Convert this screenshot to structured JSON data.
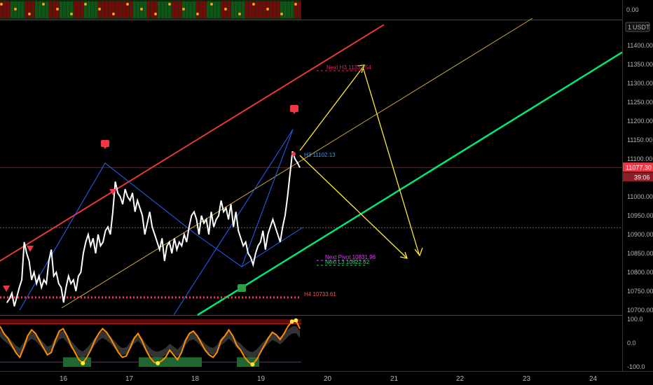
{
  "symbol_unit": "USDT",
  "chart_data": [
    {
      "type": "heatmap",
      "title": "",
      "y_tick_labels": [
        "0.00"
      ],
      "note": "top strip indicator, red/green bars with orange dots"
    },
    {
      "type": "line",
      "title": "",
      "x_ticks": [
        "16",
        "17",
        "18",
        "19",
        "20",
        "21",
        "22",
        "23",
        "24"
      ],
      "y_ticks": [
        "11400.00",
        "11350.00",
        "11300.00",
        "11250.00",
        "11200.00",
        "11150.00",
        "11100.00",
        "11000.00",
        "10950.00",
        "10900.00",
        "10850.00",
        "10800.00",
        "10750.00",
        "10700.00"
      ],
      "ylim": [
        10700,
        11450
      ],
      "grid": false,
      "current_price": "11077.30",
      "countdown": "39:06",
      "price_series": [
        10720,
        10730,
        10745,
        10710,
        10735,
        10760,
        10780,
        10880,
        10850,
        10830,
        10780,
        10800,
        10770,
        10790,
        10760,
        10780,
        10770,
        10830,
        10860,
        10790,
        10800,
        10770,
        10760,
        10720,
        10760,
        10790,
        10770,
        10780,
        10750,
        10790,
        10800,
        10850,
        10880,
        10900,
        10870,
        10890,
        10850,
        10900,
        10870,
        10880,
        10910,
        10920,
        10900,
        10960,
        11040,
        11010,
        11000,
        10980,
        11020,
        11000,
        10990,
        11010,
        10960,
        10990,
        10970,
        10950,
        10900,
        10930,
        10960,
        10920,
        10900,
        10880,
        10860,
        10890,
        10830,
        10870,
        10880,
        10850,
        10890,
        10860,
        10880,
        10870,
        10900,
        10880,
        10920,
        10950,
        10960,
        10940,
        10900,
        10950,
        10930,
        10940,
        10900,
        10960,
        10920,
        10940,
        10950,
        10990,
        10960,
        10970,
        10940,
        10980,
        10920,
        10960,
        10910,
        10890,
        10870,
        10880,
        10850,
        10840,
        10820,
        10850,
        10870,
        10880,
        10910,
        10860,
        10900,
        10920,
        10940,
        10920,
        10900,
        10880,
        10920,
        10950,
        11000,
        11060,
        11120,
        11100,
        11090,
        11077
      ],
      "annotations": [
        "Next H3 11334.54",
        "H3 11102.13",
        "Next Pivot 10831.96",
        "Next L3 10822.62",
        "H4 10733.61"
      ],
      "colors": {
        "upper_channel": "#e53935",
        "lower_channel": "#00e676",
        "mid_channel": "#c9a63a",
        "projection": "#ffeb3b",
        "wedge": "#2962ff",
        "price": "#ffffff",
        "price_badge": "#f23645"
      }
    },
    {
      "type": "line",
      "title": "",
      "y_ticks": [
        "100.0",
        "0.0",
        "-100.0"
      ],
      "ylim": [
        -110,
        110
      ],
      "series": [
        {
          "values": [
            70,
            40,
            20,
            -10,
            -40,
            -60,
            -20,
            30,
            55,
            40,
            10,
            -20,
            -50,
            -40,
            10,
            50,
            60,
            30,
            -10,
            -40,
            -70,
            -85,
            -60,
            -30,
            10,
            40,
            60,
            45,
            20,
            -10,
            -40,
            -60,
            -55,
            -20,
            20,
            40,
            10,
            -30,
            -60,
            -80,
            -85,
            -75,
            -60,
            -30,
            -50,
            -70,
            -40,
            10,
            40,
            50,
            30,
            0,
            -30,
            -50,
            -60,
            -40,
            10,
            30,
            55,
            30,
            -10,
            -30,
            -60,
            -80,
            -90,
            -70,
            -40,
            -10,
            20,
            45,
            35,
            15,
            40,
            70,
            90,
            95,
            60
          ]
        }
      ],
      "zones": {
        "overbought": 80,
        "oversold": -80
      }
    }
  ]
}
